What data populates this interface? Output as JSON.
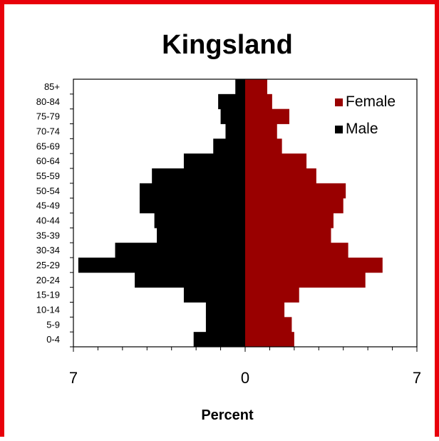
{
  "chart_data": {
    "type": "bar",
    "orientation": "horizontal",
    "layout": "population-pyramid",
    "title": "Kingsland",
    "xlabel": "Percent",
    "ylabel": "",
    "categories": [
      "0-4",
      "5-9",
      "10-14",
      "15-19",
      "20-24",
      "25-29",
      "30-34",
      "35-39",
      "40-44",
      "45-49",
      "50-54",
      "55-59",
      "60-64",
      "65-69",
      "70-74",
      "75-79",
      "80-84",
      "85+"
    ],
    "series": [
      {
        "name": "Female",
        "color": "#990000",
        "side": "right",
        "values": [
          2.0,
          1.9,
          1.6,
          2.2,
          4.9,
          5.6,
          4.2,
          3.5,
          3.6,
          4.0,
          4.1,
          2.9,
          2.5,
          1.5,
          1.3,
          1.8,
          1.1,
          0.9
        ]
      },
      {
        "name": "Male",
        "color": "#000000",
        "side": "left",
        "values": [
          2.1,
          1.6,
          1.6,
          2.5,
          4.5,
          6.8,
          5.3,
          3.6,
          3.7,
          4.3,
          4.3,
          3.8,
          2.5,
          1.3,
          0.8,
          1.0,
          1.1,
          0.4
        ]
      }
    ],
    "xlim": [
      -7,
      7
    ],
    "xtick_labels": [
      "7",
      "0",
      "7"
    ],
    "xtick_values": [
      -7,
      0,
      7
    ],
    "grid": false,
    "legend": "top-right"
  }
}
